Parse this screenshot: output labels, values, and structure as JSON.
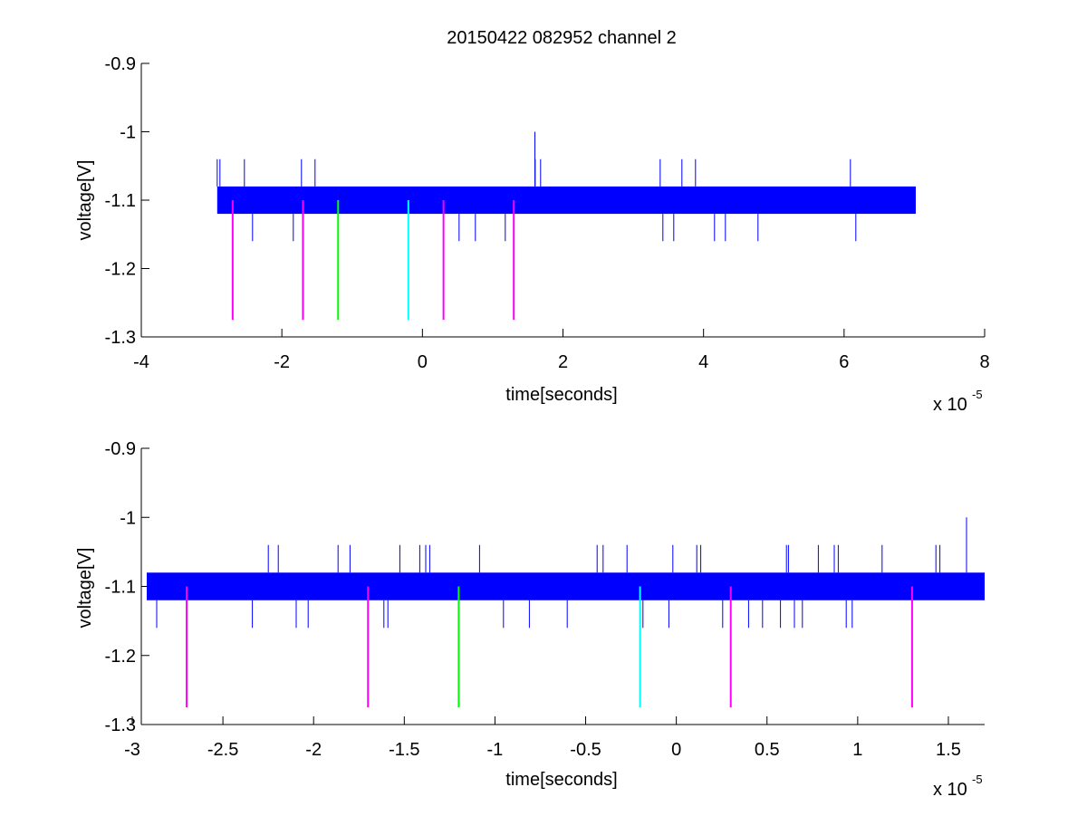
{
  "figure": {
    "title": "20150422 082952 channel 2"
  },
  "chart_data": [
    {
      "type": "line",
      "xlabel": "time[seconds]",
      "ylabel": "voltage[V]",
      "x_exponent_label": "x 10",
      "x_exponent_power": "-5",
      "xlim": [
        -4,
        8
      ],
      "ylim": [
        -1.3,
        -0.9
      ],
      "xticks": [
        -4,
        -2,
        0,
        2,
        4,
        6,
        8
      ],
      "xtick_labels": [
        "-4",
        "-2",
        "0",
        "2",
        "4",
        "6",
        "8"
      ],
      "yticks": [
        -1.3,
        -1.2,
        -1.1,
        -1.0,
        -0.9
      ],
      "ytick_labels": [
        "-1.3",
        "-1.2",
        "-1.1",
        "-1",
        "-0.9"
      ],
      "series": [
        {
          "color": "#0000ff",
          "band": {
            "x_start": -2.92,
            "x_end": 7.02,
            "y_low": -1.12,
            "y_high": -1.08
          },
          "spikes": {
            "up_level": -1.04,
            "down_level": -1.16,
            "peak": {
              "x": 1.6,
              "y": -1.0
            }
          }
        }
      ],
      "markers": [
        {
          "x": -2.7,
          "y_top": -1.1,
          "y_bottom": -1.275,
          "color": "#ff00ff"
        },
        {
          "x": -1.7,
          "y_top": -1.1,
          "y_bottom": -1.275,
          "color": "#ff00ff"
        },
        {
          "x": -1.2,
          "y_top": -1.1,
          "y_bottom": -1.275,
          "color": "#00ff00"
        },
        {
          "x": -0.2,
          "y_top": -1.1,
          "y_bottom": -1.275,
          "color": "#00ffff"
        },
        {
          "x": 0.3,
          "y_top": -1.1,
          "y_bottom": -1.275,
          "color": "#ff00ff"
        },
        {
          "x": 1.3,
          "y_top": -1.1,
          "y_bottom": -1.275,
          "color": "#ff00ff"
        }
      ],
      "grid": false
    },
    {
      "type": "line",
      "xlabel": "time[seconds]",
      "ylabel": "voltage[V]",
      "x_exponent_label": "x 10",
      "x_exponent_power": "-5",
      "xlim": [
        -2.95,
        1.7
      ],
      "ylim": [
        -1.3,
        -0.9
      ],
      "xticks": [
        -3,
        -2.5,
        -2,
        -1.5,
        -1,
        -0.5,
        0,
        0.5,
        1,
        1.5
      ],
      "xtick_labels": [
        "-3",
        "-2.5",
        "-2",
        "-1.5",
        "-1",
        "-0.5",
        "0",
        "0.5",
        "1",
        "1.5"
      ],
      "yticks": [
        -1.3,
        -1.2,
        -1.1,
        -1.0,
        -0.9
      ],
      "ytick_labels": [
        "-1.3",
        "-1.2",
        "-1.1",
        "-1",
        "-0.9"
      ],
      "series": [
        {
          "color": "#0000ff",
          "band": {
            "x_start": -2.92,
            "x_end": 1.7,
            "y_low": -1.12,
            "y_high": -1.08
          },
          "spikes": {
            "up_level": -1.04,
            "down_level": -1.16,
            "peak": {
              "x": 1.6,
              "y": -1.0
            }
          }
        }
      ],
      "markers": [
        {
          "x": -2.7,
          "y_top": -1.1,
          "y_bottom": -1.275,
          "color": "#ff00ff"
        },
        {
          "x": -1.7,
          "y_top": -1.1,
          "y_bottom": -1.275,
          "color": "#ff00ff"
        },
        {
          "x": -1.2,
          "y_top": -1.1,
          "y_bottom": -1.275,
          "color": "#00ff00"
        },
        {
          "x": -0.2,
          "y_top": -1.1,
          "y_bottom": -1.275,
          "color": "#00ffff"
        },
        {
          "x": 0.3,
          "y_top": -1.1,
          "y_bottom": -1.275,
          "color": "#ff00ff"
        },
        {
          "x": 1.3,
          "y_top": -1.1,
          "y_bottom": -1.275,
          "color": "#ff00ff"
        }
      ],
      "grid": false
    }
  ]
}
